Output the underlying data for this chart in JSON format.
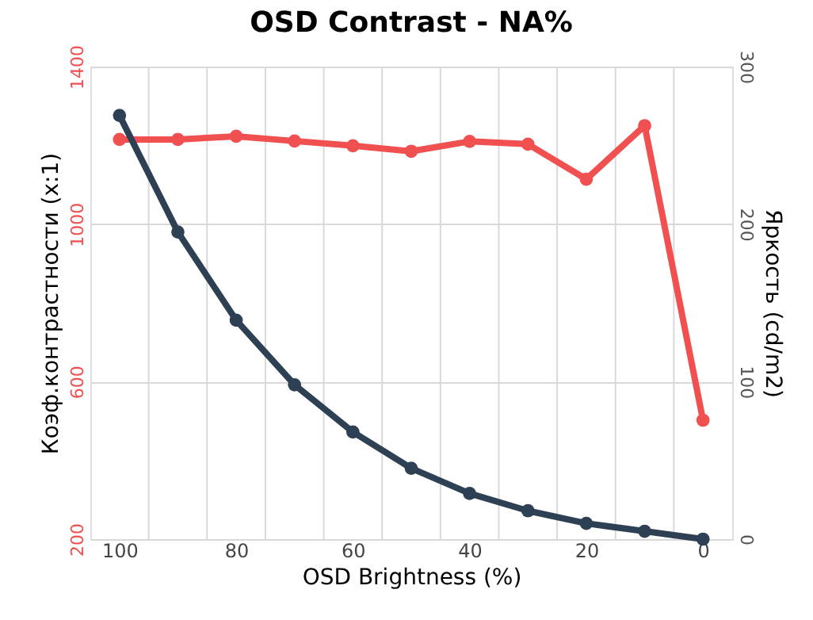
{
  "chart_data": {
    "type": "line",
    "title": "OSD Contrast - NA%",
    "xlabel": "OSD Brightness (%)",
    "ylabel": "Коэф.контрастности  (x:1)",
    "y2label": "Яркость (cd/m2)",
    "x": [
      100,
      90,
      80,
      70,
      60,
      50,
      40,
      30,
      20,
      10,
      0
    ],
    "xlim": [
      105,
      -5
    ],
    "xticks": [
      100,
      {
        "value": 95,
        "label": null
      },
      {
        "value": 85,
        "label": null
      },
      80,
      {
        "value": 75,
        "label": null
      },
      {
        "value": 65,
        "label": null
      },
      60,
      {
        "value": 55,
        "label": null
      },
      {
        "value": 45,
        "label": null
      },
      40,
      {
        "value": 35,
        "label": null
      },
      {
        "value": 25,
        "label": null
      },
      20,
      {
        "value": 15,
        "label": null
      },
      {
        "value": 5,
        "label": null
      },
      0
    ],
    "ylim": [
      200,
      1400
    ],
    "yticks": [
      200,
      600,
      1000,
      1400
    ],
    "y2lim": [
      0,
      300
    ],
    "y2ticks": [
      0,
      100,
      200,
      300
    ],
    "grid": true,
    "marker": "circle",
    "line_style": "solid",
    "series": [
      {
        "color": "#f05050",
        "values": [
          1215,
          1215,
          1223,
          1211,
          1199,
          1185,
          1210,
          1203,
          1114,
          1250,
          502
        ]
      },
      {
        "color": "#2e4053",
        "axis": "y2",
        "values": [
          269,
          195,
          139,
          98,
          68,
          45,
          29,
          18,
          10,
          5,
          0
        ]
      }
    ]
  }
}
